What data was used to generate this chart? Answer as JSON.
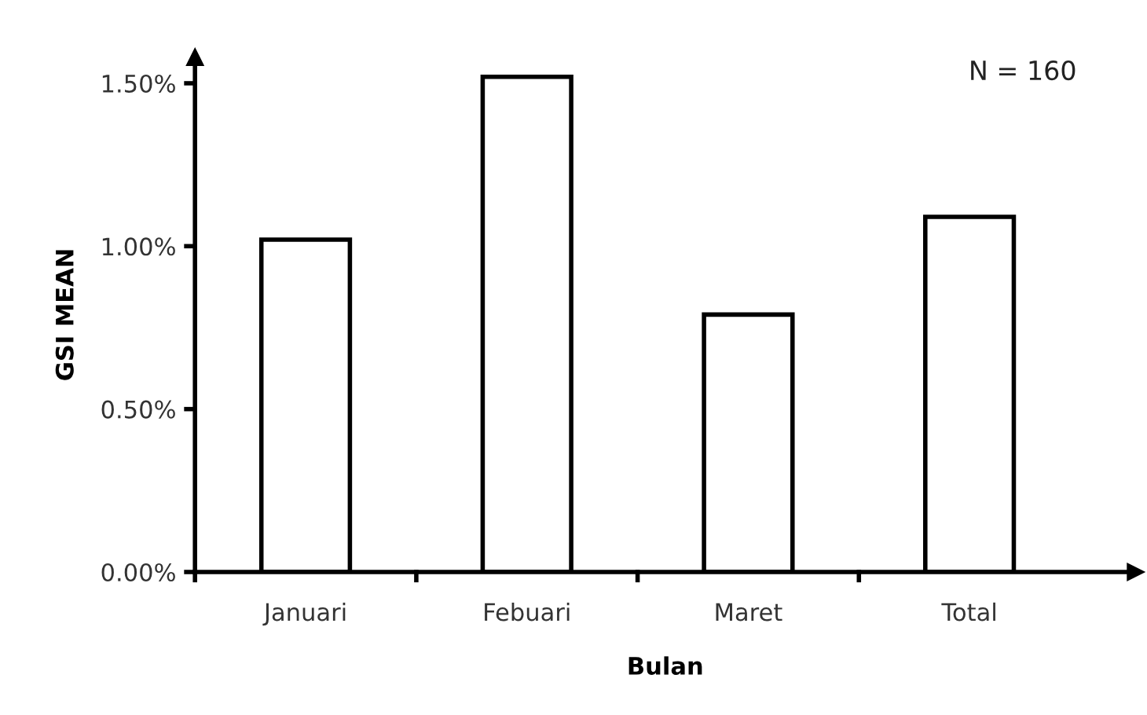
{
  "chart_data": {
    "type": "bar",
    "categories": [
      "Januari",
      "Febuari",
      "Maret",
      "Total"
    ],
    "values": [
      1.02,
      1.52,
      0.79,
      1.09
    ],
    "color": "#ffffff",
    "xlabel": "Bulan",
    "ylabel": "GSI MEAN",
    "ylim": [
      0,
      1.58
    ],
    "yticks": [
      {
        "value": 0,
        "label": "0.00%"
      },
      {
        "value": 0.5,
        "label": "0.50%"
      },
      {
        "value": 1.0,
        "label": "1.00%"
      },
      {
        "value": 1.5,
        "label": "1.50%"
      }
    ],
    "annotations": [
      "N = 160"
    ],
    "grid": false,
    "legend": false
  }
}
